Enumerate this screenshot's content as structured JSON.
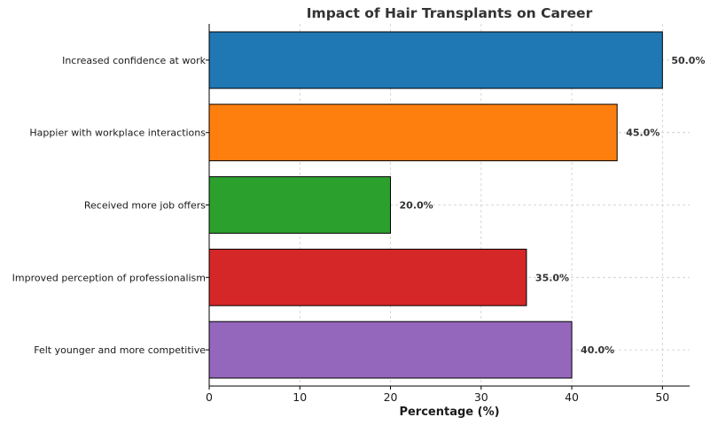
{
  "chart_data": {
    "type": "bar",
    "orientation": "horizontal",
    "title": "Impact of Hair Transplants on Career",
    "xlabel": "Percentage (%)",
    "ylabel": "",
    "xlim": [
      0,
      53
    ],
    "xticks": [
      0,
      10,
      20,
      30,
      40,
      50
    ],
    "grid": true,
    "categories": [
      "Increased confidence at work",
      "Happier with workplace interactions",
      "Received more job offers",
      "Improved perception of professionalism",
      "Felt younger and more competitive"
    ],
    "values": [
      50,
      45,
      20,
      35,
      40
    ],
    "data_labels": [
      "50.0%",
      "45.0%",
      "20.0%",
      "35.0%",
      "40.0%"
    ],
    "colors": [
      "#1f77b4",
      "#ff7f0e",
      "#2ca02c",
      "#d62728",
      "#9467bd"
    ]
  }
}
